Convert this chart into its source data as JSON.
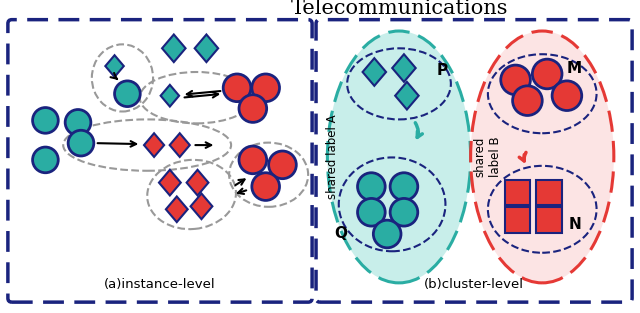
{
  "title": "Telecommunications",
  "bg_color": "#ffffff",
  "outer_box_color": "#1a237e",
  "teal_color": "#2aada3",
  "red_color": "#e53935",
  "dark_navy": "#1a237e",
  "gray_dashed": "#999999",
  "teal_bg": "#c8eeea",
  "red_bg": "#fce4e4",
  "left_panel_label": "(a)instance-level",
  "right_panel_label": "(b)cluster-level",
  "shared_label_A": "shared label A",
  "shared_label_B": "shared\nlabel B",
  "cluster_P_label": "P",
  "cluster_Q_label": "Q",
  "cluster_M_label": "M",
  "cluster_N_label": "N"
}
